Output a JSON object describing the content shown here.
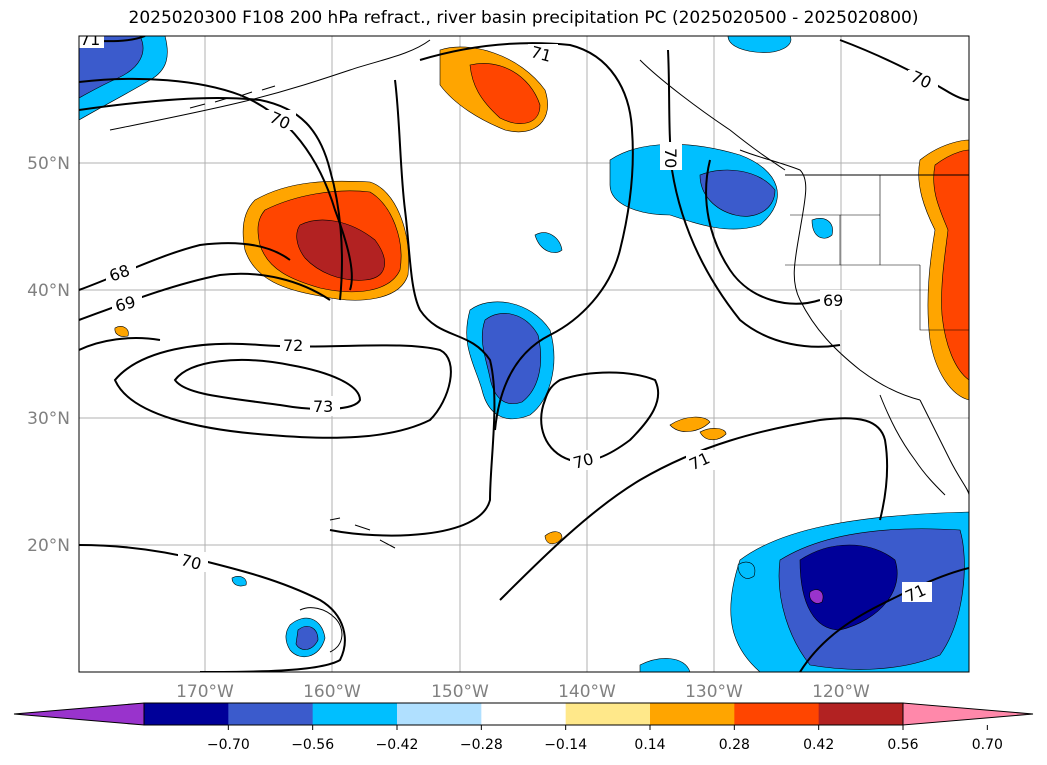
{
  "title": "2025020300 F108 200 hPa refract., river basin precipitation PC (2025020500 - 2025020800)",
  "map": {
    "lat_labels": [
      "50°N",
      "40°N",
      "30°N",
      "20°N"
    ],
    "lon_labels": [
      "170°W",
      "160°W",
      "150°W",
      "140°W",
      "130°W",
      "120°W"
    ],
    "contour_labels": [
      "71",
      "70",
      "71",
      "70",
      "70",
      "68",
      "69",
      "72",
      "73",
      "70",
      "71",
      "69",
      "70",
      "71"
    ]
  },
  "colorbar": {
    "ticks": [
      "−0.70",
      "−0.56",
      "−0.42",
      "−0.28",
      "−0.14",
      "0.14",
      "0.28",
      "0.42",
      "0.56",
      "0.70"
    ],
    "colors": [
      "#9933cc",
      "#000099",
      "#3b5bcc",
      "#00bfff",
      "#b0e0ff",
      "#ffffff",
      "#ffe88a",
      "#ffa500",
      "#ff4500",
      "#b22222",
      "#ff88aa"
    ]
  }
}
